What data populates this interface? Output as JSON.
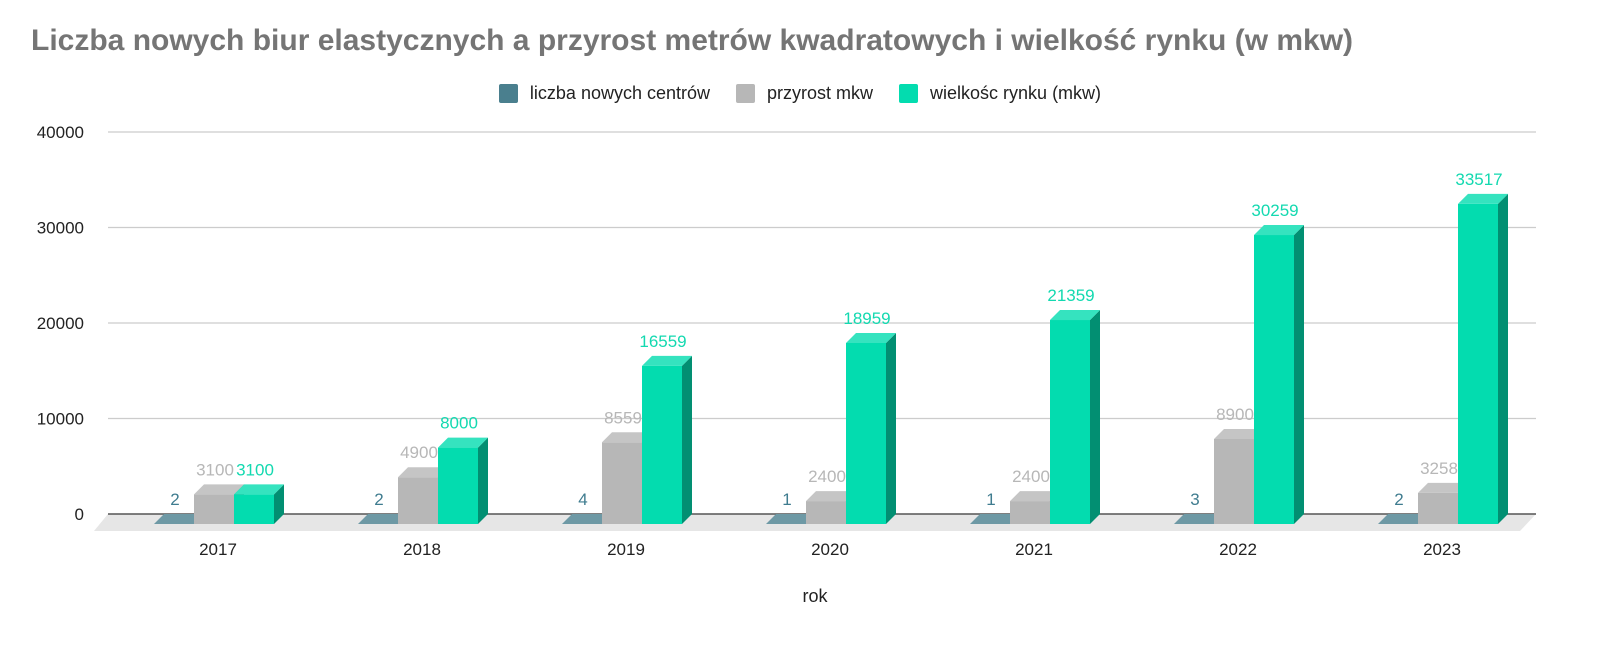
{
  "chart_data": {
    "type": "bar",
    "title": "Liczba nowych biur elastycznych a przyrost metrów kwadratowych i wielkość rynku (w mkw)",
    "xlabel": "rok",
    "ylabel": "",
    "categories": [
      "2017",
      "2018",
      "2019",
      "2020",
      "2021",
      "2022",
      "2023"
    ],
    "ylim": [
      0,
      40000
    ],
    "yticks": [
      0,
      10000,
      20000,
      30000,
      40000
    ],
    "grid": true,
    "legend_position": "top-center",
    "series": [
      {
        "name": "liczba nowych centrów",
        "values": [
          2,
          2,
          4,
          1,
          1,
          3,
          2
        ],
        "color": "#4a7f8e",
        "label_color": "#3f7c8f"
      },
      {
        "name": "przyrost mkw",
        "values": [
          3100,
          4900,
          8559,
          2400,
          2400,
          8900,
          3258
        ],
        "color": "#b7b7b7",
        "label_color": "#b7b7b7"
      },
      {
        "name": "wielkośc rynku (mkw)",
        "values": [
          3100,
          8000,
          16559,
          18959,
          21359,
          30259,
          33517
        ],
        "color": "#03dcaf",
        "label_color": "#13d9b0"
      }
    ]
  }
}
